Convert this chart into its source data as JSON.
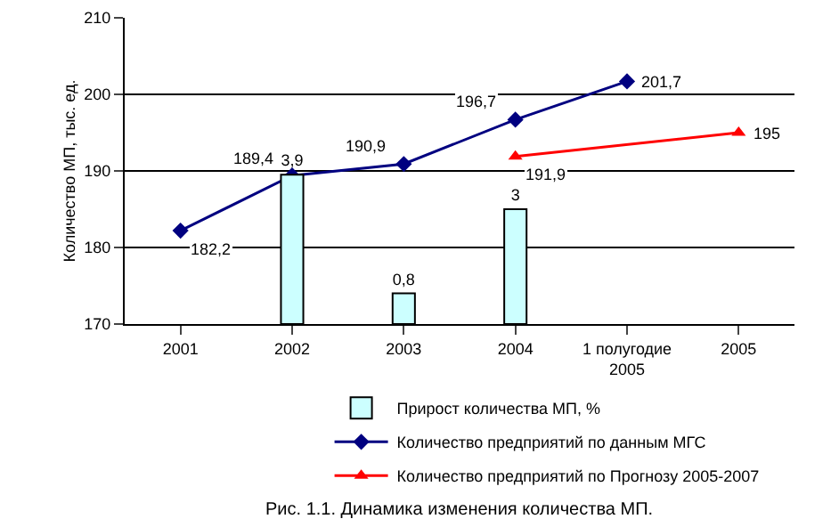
{
  "chart_data": {
    "type": "line",
    "ylabel": "Количество МП, тыс. ед.",
    "categories": [
      "2001",
      "2002",
      "2003",
      "2004",
      "1 полугодие 2005",
      "2005"
    ],
    "ylim": [
      170,
      210
    ],
    "yticks": [
      170,
      180,
      190,
      200,
      210
    ],
    "y2lim": [
      0,
      8
    ],
    "grid": "y",
    "legend": "bottom",
    "series": [
      {
        "type": "bar",
        "axis": "y2",
        "name": "Прирост количества МП, %",
        "color": "#ccffff",
        "values": [
          null,
          3.9,
          0.8,
          3,
          null,
          null
        ],
        "value_labels": [
          null,
          "3,9",
          "0,8",
          "3",
          null,
          null
        ]
      },
      {
        "name": "Количество предприятий по данным МГС",
        "color": "#000080",
        "marker": "diamond",
        "values": [
          182.2,
          189.4,
          190.9,
          196.7,
          201.7,
          null
        ],
        "value_labels": [
          "182,2",
          "189,4",
          "190,9",
          "196,7",
          "201,7",
          null
        ]
      },
      {
        "name": "Количество предприятий по Прогнозу 2005-2007",
        "color": "#ff0000",
        "marker": "triangle",
        "values": [
          null,
          null,
          null,
          191.9,
          null,
          195
        ],
        "value_labels": [
          null,
          null,
          null,
          "191,9",
          null,
          "195"
        ]
      }
    ],
    "annotations": [
      "Рис. 1.1. Динамика изменения количества МП."
    ]
  }
}
